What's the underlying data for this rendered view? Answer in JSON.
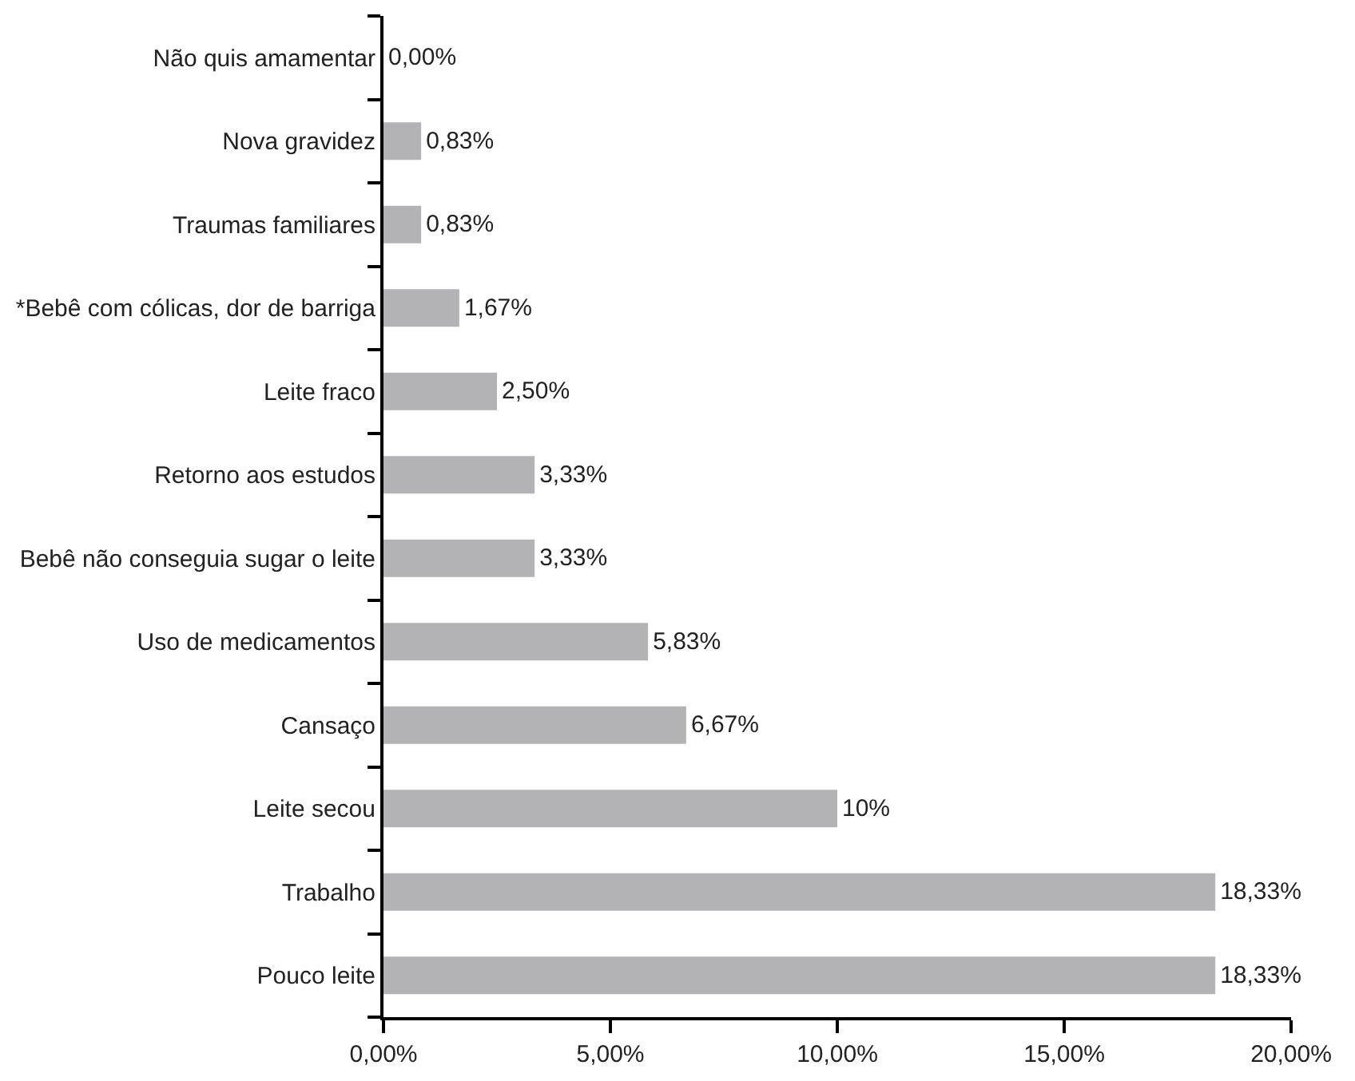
{
  "chart_data": {
    "type": "bar",
    "orientation": "horizontal",
    "categories": [
      "Não quis amamentar",
      "Nova gravidez",
      "Traumas familiares",
      "*Bebê com cólicas, dor de barriga",
      "Leite fraco",
      "Retorno aos estudos",
      "Bebê não conseguia sugar o leite",
      "Uso de medicamentos",
      "Cansaço",
      "Leite secou",
      "Trabalho",
      "Pouco leite"
    ],
    "values": [
      0,
      0.83,
      0.83,
      1.67,
      2.5,
      3.33,
      3.33,
      5.83,
      6.67,
      10,
      18.33,
      18.33
    ],
    "value_labels": [
      "0,00%",
      "0,83%",
      "0,83%",
      "1,67%",
      "2,50%",
      "3,33%",
      "3,33%",
      "5,83%",
      "6,67%",
      "10%",
      "18,33%",
      "18,33%"
    ],
    "color": "#b3b3b5",
    "xlim": [
      0,
      20
    ],
    "xticks": [
      {
        "value": 0,
        "label": "0,00%"
      },
      {
        "value": 5,
        "label": "5,00%"
      },
      {
        "value": 10,
        "label": "10,00%"
      },
      {
        "value": 15,
        "label": "15,00%"
      },
      {
        "value": 20,
        "label": "20,00%"
      }
    ],
    "grid": false
  }
}
